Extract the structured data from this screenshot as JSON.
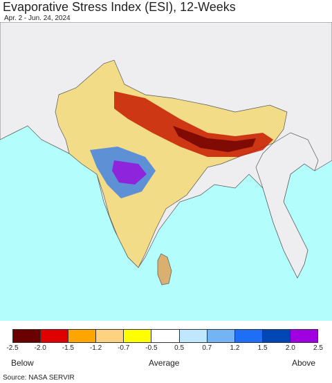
{
  "title": "Evaporative Stress Index (ESI), 12-Weeks",
  "subtitle": "Apr. 2 - Jun. 24, 2024",
  "legend": {
    "colors": [
      "#6b0000",
      "#e00000",
      "#ffa500",
      "#ffd27f",
      "#ffff00",
      "#ffffff",
      "#bfe8ff",
      "#74b4f5",
      "#1e6ff5",
      "#0046b4",
      "#a000e0"
    ],
    "ticks": [
      "-2.5",
      "-2.0",
      "-1.5",
      "-1.2",
      "-0.7",
      "-0.5",
      "0.5",
      "0.7",
      "1.2",
      "1.5",
      "2.0",
      "2.5"
    ],
    "below_label": "Below",
    "average_label": "Average",
    "above_label": "Above"
  },
  "source": "Source: NASA SERVIR"
}
